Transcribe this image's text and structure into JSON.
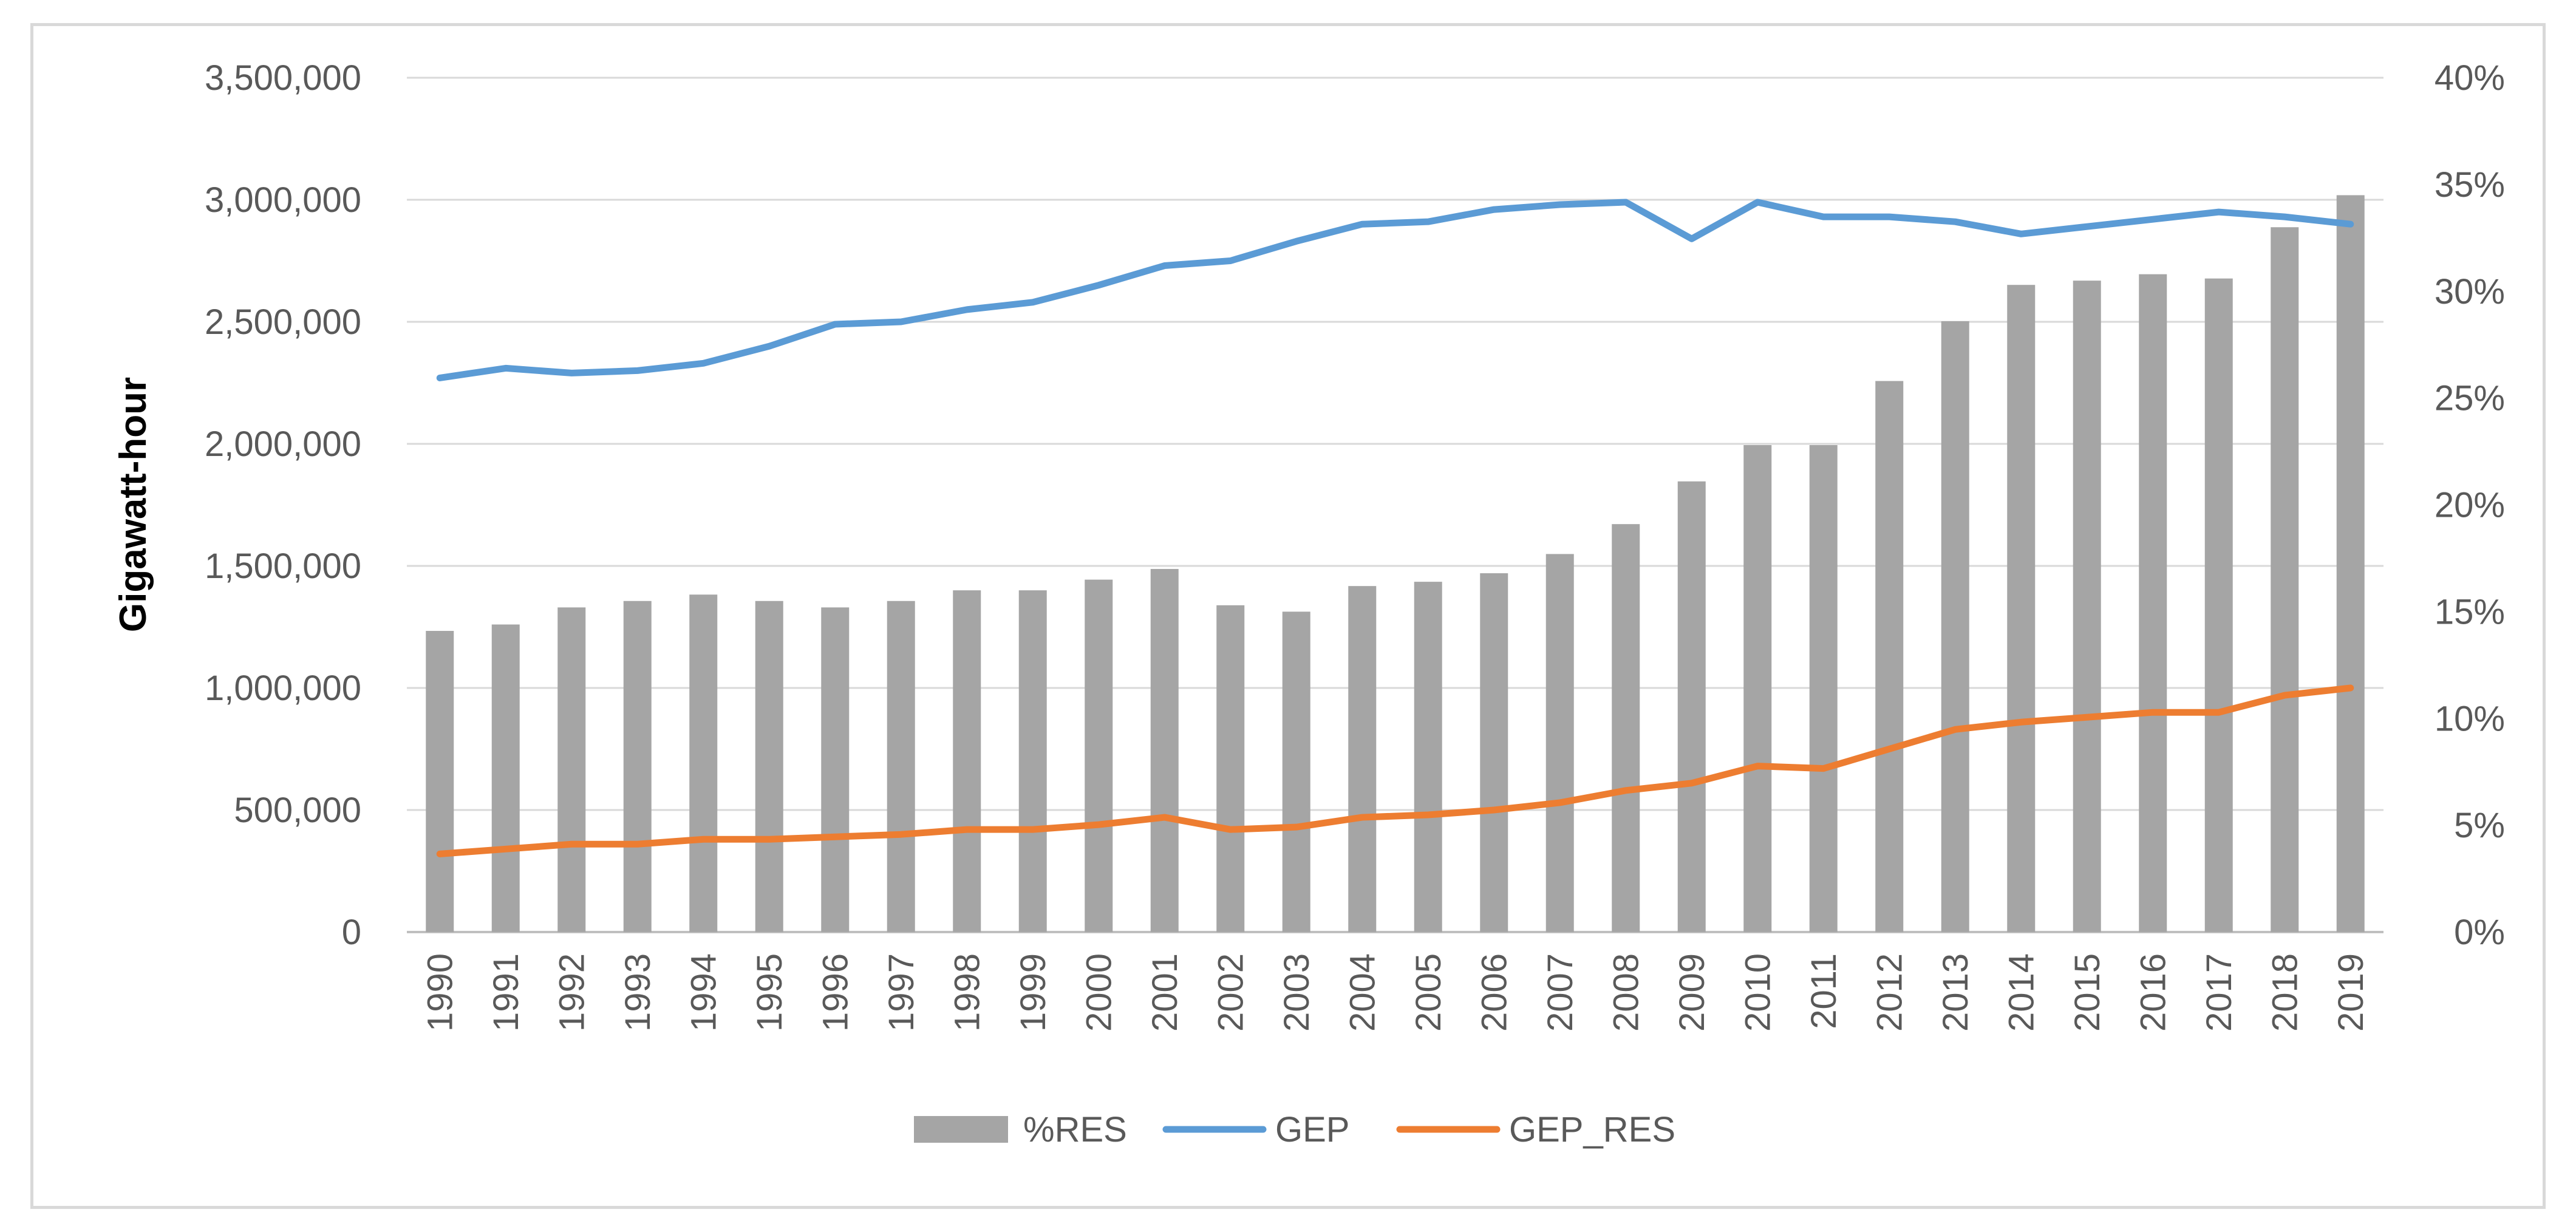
{
  "chart_data": {
    "type": "bar",
    "ylabel": "Gigawatt-hour",
    "xlabel": "",
    "categories": [
      "1990",
      "1991",
      "1992",
      "1993",
      "1994",
      "1995",
      "1996",
      "1997",
      "1998",
      "1999",
      "2000",
      "2001",
      "2002",
      "2003",
      "2004",
      "2005",
      "2006",
      "2007",
      "2008",
      "2009",
      "2010",
      "2011",
      "2012",
      "2013",
      "2014",
      "2015",
      "2016",
      "2017",
      "2018",
      "2019"
    ],
    "y_left": {
      "ylim": [
        0,
        3500000
      ],
      "ticks": [
        0,
        500000,
        1000000,
        1500000,
        2000000,
        2500000,
        3000000,
        3500000
      ],
      "tick_labels": [
        "0",
        "500,000",
        "1,000,000",
        "1,500,000",
        "2,000,000",
        "2,500,000",
        "3,000,000",
        "3,500,000"
      ]
    },
    "y_right": {
      "ylim": [
        0,
        40
      ],
      "ticks": [
        0,
        5,
        10,
        15,
        20,
        25,
        30,
        35,
        40
      ],
      "tick_labels": [
        "0%",
        "5%",
        "10%",
        "15%",
        "20%",
        "25%",
        "30%",
        "35%",
        "40%"
      ]
    },
    "grid": true,
    "legend_position": "bottom",
    "series": [
      {
        "name": "%RES",
        "kind": "bar",
        "axis": "right",
        "color": "#a5a5a5",
        "values": [
          14.1,
          14.4,
          15.2,
          15.5,
          15.8,
          15.5,
          15.2,
          15.5,
          16.0,
          16.0,
          16.5,
          17.0,
          15.3,
          15.0,
          16.2,
          16.4,
          16.8,
          17.7,
          19.1,
          21.1,
          22.8,
          22.8,
          25.8,
          28.6,
          30.3,
          30.5,
          30.8,
          30.6,
          33.0,
          34.5
        ]
      },
      {
        "name": "GEP",
        "kind": "line",
        "axis": "left",
        "color": "#5b9bd5",
        "values": [
          2270000,
          2310000,
          2290000,
          2300000,
          2330000,
          2400000,
          2490000,
          2500000,
          2550000,
          2580000,
          2650000,
          2730000,
          2750000,
          2830000,
          2900000,
          2910000,
          2960000,
          2980000,
          2990000,
          2840000,
          2990000,
          2930000,
          2930000,
          2910000,
          2860000,
          2890000,
          2920000,
          2950000,
          2930000,
          2900000
        ]
      },
      {
        "name": "GEP_RES",
        "kind": "line",
        "axis": "left",
        "color": "#ed7d31",
        "values": [
          320000,
          340000,
          360000,
          360000,
          380000,
          380000,
          390000,
          400000,
          420000,
          420000,
          440000,
          470000,
          420000,
          430000,
          470000,
          480000,
          500000,
          530000,
          580000,
          610000,
          680000,
          670000,
          750000,
          830000,
          860000,
          880000,
          900000,
          900000,
          970000,
          1000000
        ]
      }
    ]
  }
}
